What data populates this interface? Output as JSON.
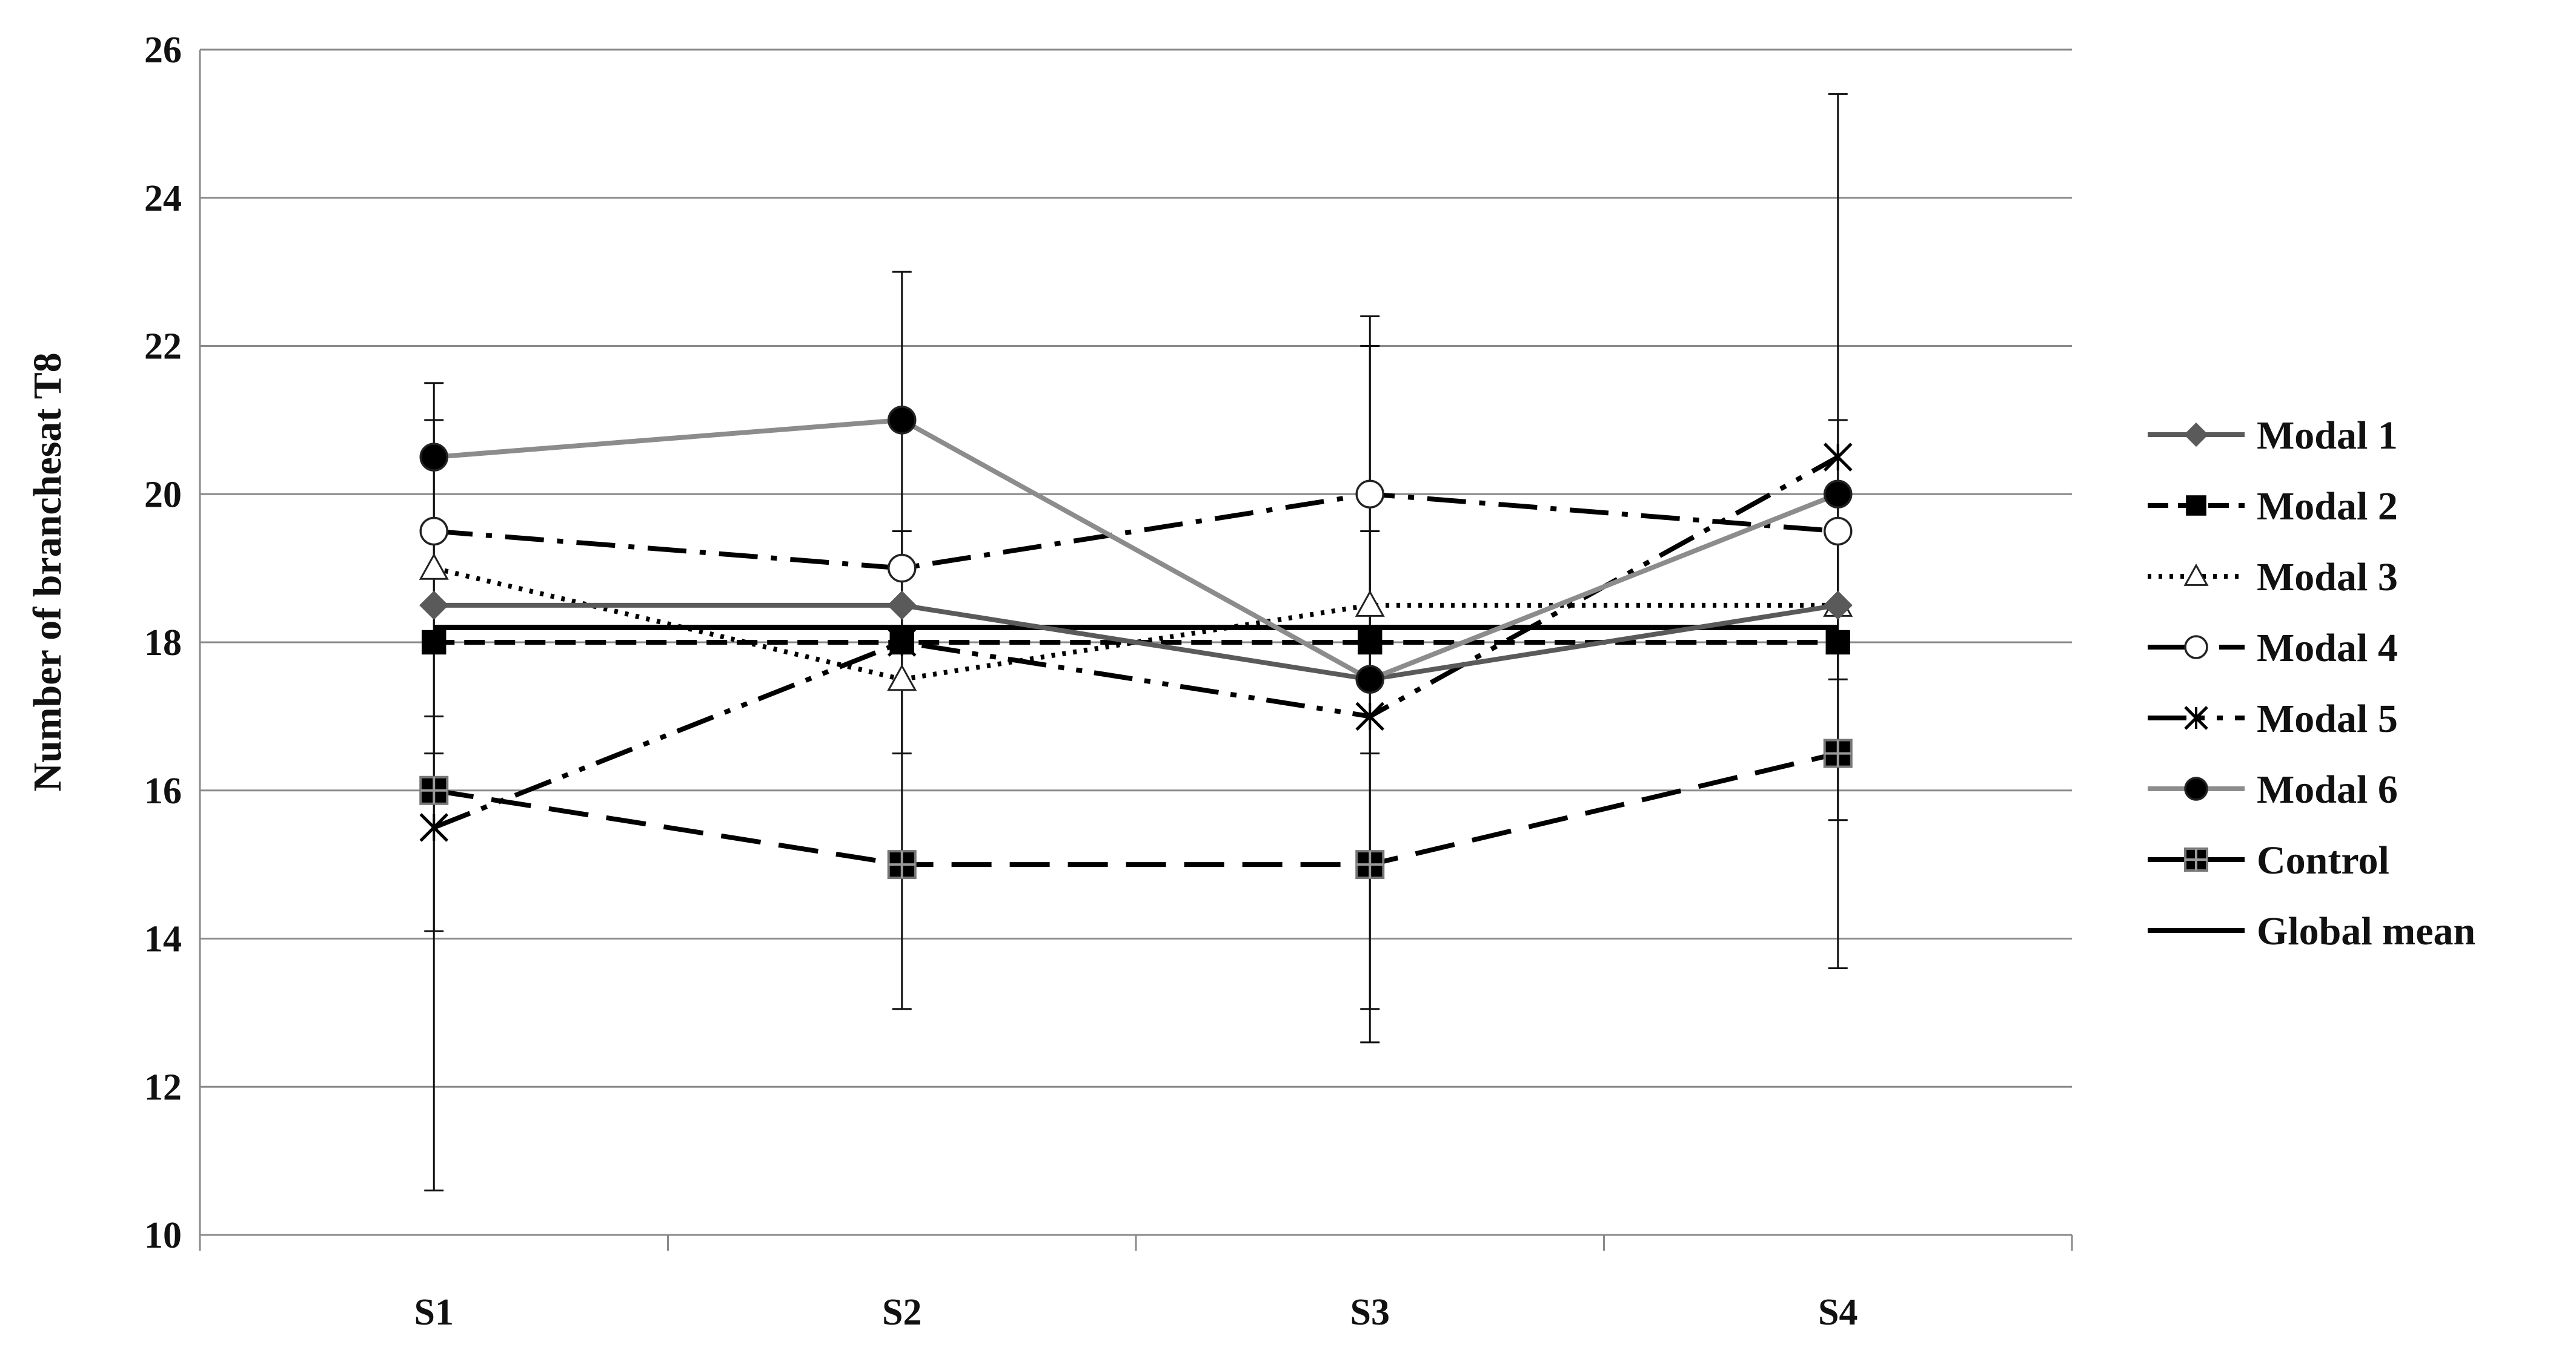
{
  "chart_data": {
    "type": "line",
    "title": "",
    "xlabel": "",
    "ylabel": "Number of branchesat T8",
    "categories": [
      "S1",
      "S2",
      "S3",
      "S4"
    ],
    "ylim": [
      10,
      26
    ],
    "yticks": [
      10,
      12,
      14,
      16,
      18,
      20,
      22,
      24,
      26
    ],
    "grid": true,
    "legend_position": "right",
    "series": [
      {
        "name": "Modal 1",
        "values": [
          18.5,
          18.5,
          17.5,
          18.5
        ],
        "color": "#5a5a5a",
        "dash": "solid",
        "marker": "diamond",
        "marker_fill": "#5a5a5a"
      },
      {
        "name": "Modal 2",
        "values": [
          18,
          18,
          18,
          18
        ],
        "color": "#000000",
        "dash": "dash",
        "marker": "square",
        "marker_fill": "#000000"
      },
      {
        "name": "Modal 3",
        "values": [
          19,
          17.5,
          18.5,
          18.5
        ],
        "color": "#000000",
        "dash": "dot",
        "marker": "triangle",
        "marker_fill": "#ffffff"
      },
      {
        "name": "Modal 4",
        "values": [
          19.5,
          19,
          20,
          19.5
        ],
        "color": "#000000",
        "dash": "longdashdot",
        "marker": "circle",
        "marker_fill": "#ffffff"
      },
      {
        "name": "Modal 5",
        "values": [
          15.5,
          18,
          17,
          20.5
        ],
        "color": "#000000",
        "dash": "longdashdotdot",
        "marker": "asterisk",
        "marker_fill": "none"
      },
      {
        "name": "Modal 6",
        "values": [
          20.5,
          21,
          17.5,
          20
        ],
        "color": "#8c8c8c",
        "dash": "solid",
        "marker": "circle",
        "marker_fill": "#000000"
      },
      {
        "name": "Control",
        "values": [
          16,
          15,
          15,
          16.5
        ],
        "color": "#000000",
        "dash": "longdash",
        "marker": "square-cross",
        "marker_fill": "#000000"
      },
      {
        "name": "Global mean",
        "values": [
          18.2,
          18.2,
          18.2,
          18.2
        ],
        "color": "#000000",
        "dash": "solid",
        "marker": "none",
        "marker_fill": "none"
      }
    ],
    "error_bars": [
      [
        {
          "low": 10.6,
          "high": 21.5
        },
        {
          "low": 16.5,
          "high": 21.0
        },
        {
          "low": 14.1,
          "high": 17.0
        }
      ],
      [
        {
          "low": 13.05,
          "high": 23.0
        },
        {
          "low": 16.5,
          "high": 19.5
        }
      ],
      [
        {
          "low": 12.6,
          "high": 22.4
        },
        {
          "low": 13.05,
          "high": 22.0
        },
        {
          "low": 16.5,
          "high": 19.5
        }
      ],
      [
        {
          "low": 13.6,
          "high": 25.4
        },
        {
          "low": 15.6,
          "high": 21.0
        },
        {
          "low": 17.5,
          "high": 19.5
        }
      ]
    ]
  }
}
